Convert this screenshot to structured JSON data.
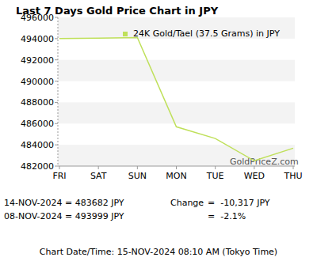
{
  "chart_data": {
    "type": "line",
    "title": "Last 7 Days Gold Price Chart in JPY",
    "categories": [
      "FRI",
      "SAT",
      "SUN",
      "MON",
      "TUE",
      "WED",
      "THU"
    ],
    "series": [
      {
        "name": "24K Gold/Tael (37.5 Grams) in JPY",
        "color": "#bfe05a",
        "values": [
          493999,
          494050,
          494100,
          485700,
          484600,
          482500,
          483682
        ]
      }
    ],
    "ylim": [
      482000,
      496000
    ],
    "yticks": [
      482000,
      484000,
      486000,
      488000,
      490000,
      492000,
      494000,
      496000
    ],
    "grid": true,
    "legend": "top-right",
    "annotations": [
      "14-NOV-2024 = 483682 JPY",
      "08-NOV-2024 = 493999 JPY",
      "Change",
      "=  -10,317 JPY",
      "=  -2.1%"
    ],
    "watermark": "GoldPriceZ.com",
    "footer": "Chart Date/Time: 15-NOV-2024 08:10 AM (Tokyo Time)"
  }
}
